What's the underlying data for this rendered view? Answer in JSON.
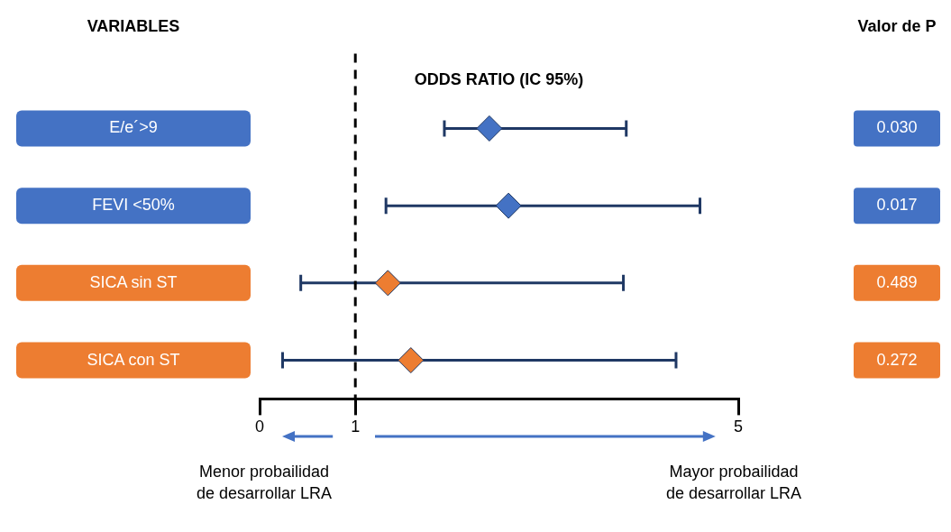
{
  "chart_data": {
    "type": "scatter",
    "orientation": "horizontal",
    "title": "ODDS RATIO (IC 95%)",
    "categories": [
      "E/e´>9",
      "FEVI <50%",
      "SICA sin ST",
      "SICA con ST"
    ],
    "values": [
      2.4,
      2.6,
      1.34,
      1.58
    ],
    "errors": [
      [
        1.93,
        3.83
      ],
      [
        1.32,
        4.6
      ],
      [
        0.43,
        3.8
      ],
      [
        0.24,
        4.35
      ]
    ],
    "colors": [
      "#4472c4",
      "#4472c4",
      "#ed7d31",
      "#ed7d31"
    ],
    "marker": "diamond",
    "grid": false,
    "legend": false,
    "xlim": [
      0,
      5
    ],
    "xticks": [
      0,
      1,
      5
    ],
    "ref_lines": [
      {
        "axis": "x",
        "value": 1,
        "label": null,
        "color": "#000000",
        "line_style": "dashed"
      }
    ],
    "annotations": [
      "VARIABLES",
      "Valor de P",
      "Menor probailidad\nde desarrollar LRA",
      "Mayor probailidad\nde desarrollar LRA",
      "0.030",
      "0.017",
      "0.489",
      "0.272"
    ]
  }
}
